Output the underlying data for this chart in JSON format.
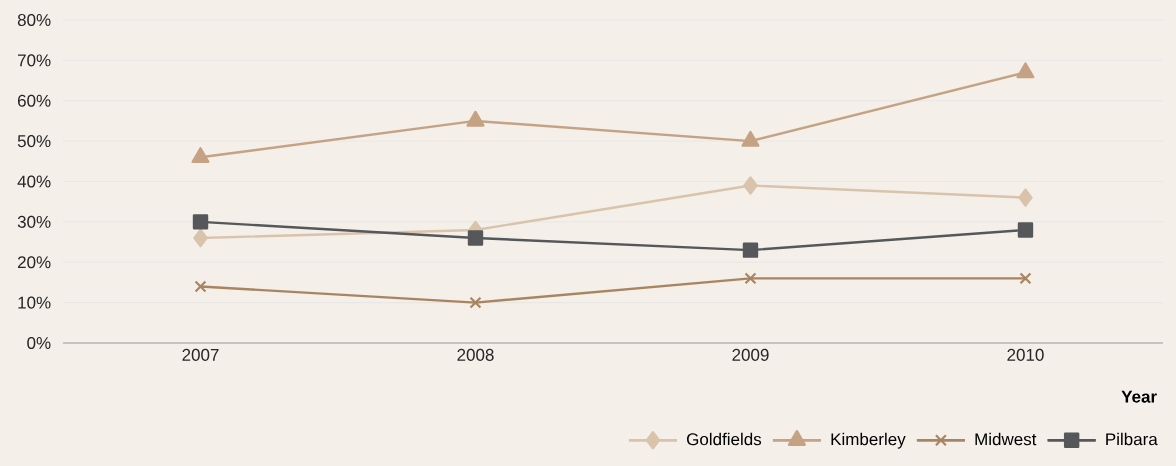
{
  "chart_data": {
    "type": "line",
    "xlabel": "Year",
    "categories": [
      "2007",
      "2008",
      "2009",
      "2010"
    ],
    "series": [
      {
        "name": "Goldfields",
        "color": "#d9c4ab",
        "marker": "diamond",
        "values": [
          26,
          28,
          39,
          36
        ]
      },
      {
        "name": "Kimberley",
        "color": "#c4a283",
        "marker": "triangle",
        "values": [
          46,
          55,
          50,
          67
        ]
      },
      {
        "name": "Midwest",
        "color": "#a88560",
        "marker": "cross",
        "values": [
          14,
          10,
          16,
          16
        ]
      },
      {
        "name": "Pilbara",
        "color": "#55575a",
        "marker": "square",
        "values": [
          30,
          26,
          23,
          28
        ]
      }
    ],
    "ylim": [
      0,
      80
    ],
    "yticks": [
      {
        "value": 0,
        "label": "0%"
      },
      {
        "value": 10,
        "label": "10%"
      },
      {
        "value": 20,
        "label": "20%"
      },
      {
        "value": 30,
        "label": "30%"
      },
      {
        "value": 40,
        "label": "40%"
      },
      {
        "value": 50,
        "label": "50%"
      },
      {
        "value": 60,
        "label": "60%"
      },
      {
        "value": 70,
        "label": "70%"
      },
      {
        "value": 80,
        "label": "80%"
      }
    ],
    "grid": "y",
    "legend": "bottom right",
    "line_style": "solid"
  }
}
